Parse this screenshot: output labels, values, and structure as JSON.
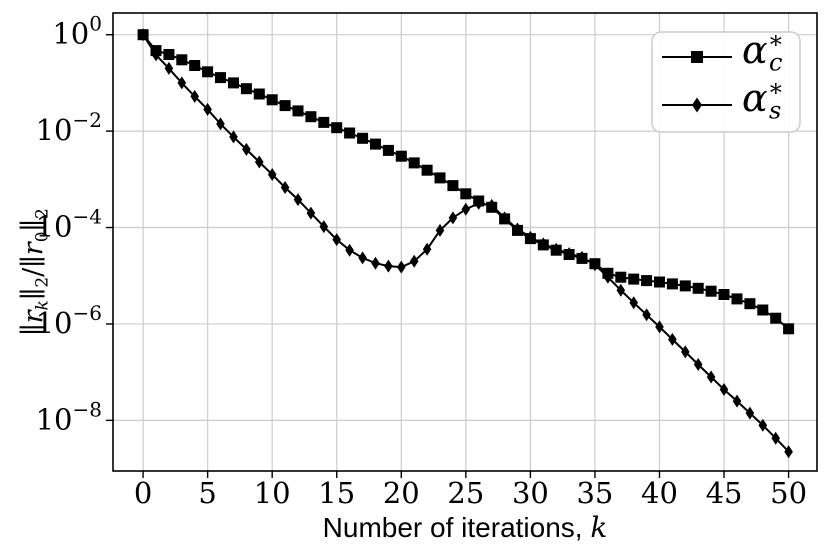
{
  "figure": {
    "background": "#ffffff",
    "grid_color": "#cccccc",
    "axis_color": "#000000",
    "series_color": "#000000",
    "legend_border_color": "#cccccc",
    "legend_fill": "#ffffff"
  },
  "chart_data": {
    "type": "line",
    "yscale": "log",
    "grid": true,
    "legend_position": "upper right",
    "xlabel": "Number of iterations, k",
    "ylabel": "‖r_k‖_2 / ‖r_0‖_2",
    "xlim": [
      -2.33,
      52.2
    ],
    "ylim_log10": [
      -9.05,
      0.45
    ],
    "xticks": [
      0,
      5,
      10,
      15,
      20,
      25,
      30,
      35,
      40,
      45,
      50
    ],
    "ytick_exponents": [
      0,
      -2,
      -4,
      -6,
      -8
    ],
    "ytick_labels": [
      "10^0",
      "10^-2",
      "10^-4",
      "10^-6",
      "10^-8"
    ],
    "x": [
      0,
      1,
      2,
      3,
      4,
      5,
      6,
      7,
      8,
      9,
      10,
      11,
      12,
      13,
      14,
      15,
      16,
      17,
      18,
      19,
      20,
      21,
      22,
      23,
      24,
      25,
      26,
      27,
      28,
      29,
      30,
      31,
      32,
      33,
      34,
      35,
      36,
      37,
      38,
      39,
      40,
      41,
      42,
      43,
      44,
      45,
      46,
      47,
      48,
      49,
      50
    ],
    "series": [
      {
        "name": "alpha_c_star",
        "label_text": "α_c^*",
        "marker": "square",
        "log10_values": [
          0.0,
          -0.33,
          -0.41,
          -0.52,
          -0.64,
          -0.77,
          -0.89,
          -1.0,
          -1.12,
          -1.23,
          -1.35,
          -1.47,
          -1.58,
          -1.7,
          -1.82,
          -1.93,
          -2.04,
          -2.15,
          -2.27,
          -2.4,
          -2.52,
          -2.66,
          -2.81,
          -2.97,
          -3.13,
          -3.3,
          -3.45,
          -3.58,
          -3.82,
          -4.06,
          -4.23,
          -4.36,
          -4.47,
          -4.56,
          -4.64,
          -4.75,
          -4.95,
          -5.03,
          -5.07,
          -5.1,
          -5.13,
          -5.17,
          -5.21,
          -5.26,
          -5.32,
          -5.39,
          -5.48,
          -5.58,
          -5.71,
          -5.88,
          -6.1
        ]
      },
      {
        "name": "alpha_s_star",
        "label_text": "α_s^*",
        "marker": "diamond",
        "log10_values": [
          0.0,
          -0.42,
          -0.7,
          -1.0,
          -1.28,
          -1.55,
          -1.85,
          -2.12,
          -2.38,
          -2.64,
          -2.9,
          -3.17,
          -3.42,
          -3.7,
          -3.98,
          -4.25,
          -4.47,
          -4.63,
          -4.74,
          -4.8,
          -4.82,
          -4.7,
          -4.45,
          -4.06,
          -3.8,
          -3.62,
          -3.5,
          -3.54,
          -3.8,
          -4.03,
          -4.2,
          -4.34,
          -4.45,
          -4.54,
          -4.62,
          -4.77,
          -5.03,
          -5.3,
          -5.56,
          -5.81,
          -6.06,
          -6.32,
          -6.58,
          -6.84,
          -7.1,
          -7.36,
          -7.6,
          -7.85,
          -8.1,
          -8.37,
          -8.65
        ]
      }
    ],
    "xlabel_parts": [
      {
        "t": "Number of iterations, ",
        "f": "sans"
      },
      {
        "t": "k",
        "i": true
      }
    ],
    "ylabel_parts": [
      {
        "t": "∥"
      },
      {
        "t": "r",
        "i": true
      },
      {
        "t": "k",
        "i": true,
        "pos": "sub"
      },
      {
        "t": "∥"
      },
      {
        "t": "2",
        "pos": "sub"
      },
      {
        "t": "/"
      },
      {
        "t": "∥"
      },
      {
        "t": "r",
        "i": true
      },
      {
        "t": "0",
        "pos": "sub"
      },
      {
        "t": "∥"
      },
      {
        "t": "2",
        "pos": "sub"
      }
    ],
    "legend": [
      {
        "marker": "square",
        "parts": [
          {
            "t": "α",
            "i": true
          },
          {
            "t": "∗",
            "pos": "sup"
          },
          {
            "t": "c",
            "i": true,
            "pos": "sub",
            "tuck": true
          }
        ]
      },
      {
        "marker": "diamond",
        "parts": [
          {
            "t": "α",
            "i": true
          },
          {
            "t": "∗",
            "pos": "sup"
          },
          {
            "t": "s",
            "i": true,
            "pos": "sub",
            "tuck": true
          }
        ]
      }
    ]
  }
}
